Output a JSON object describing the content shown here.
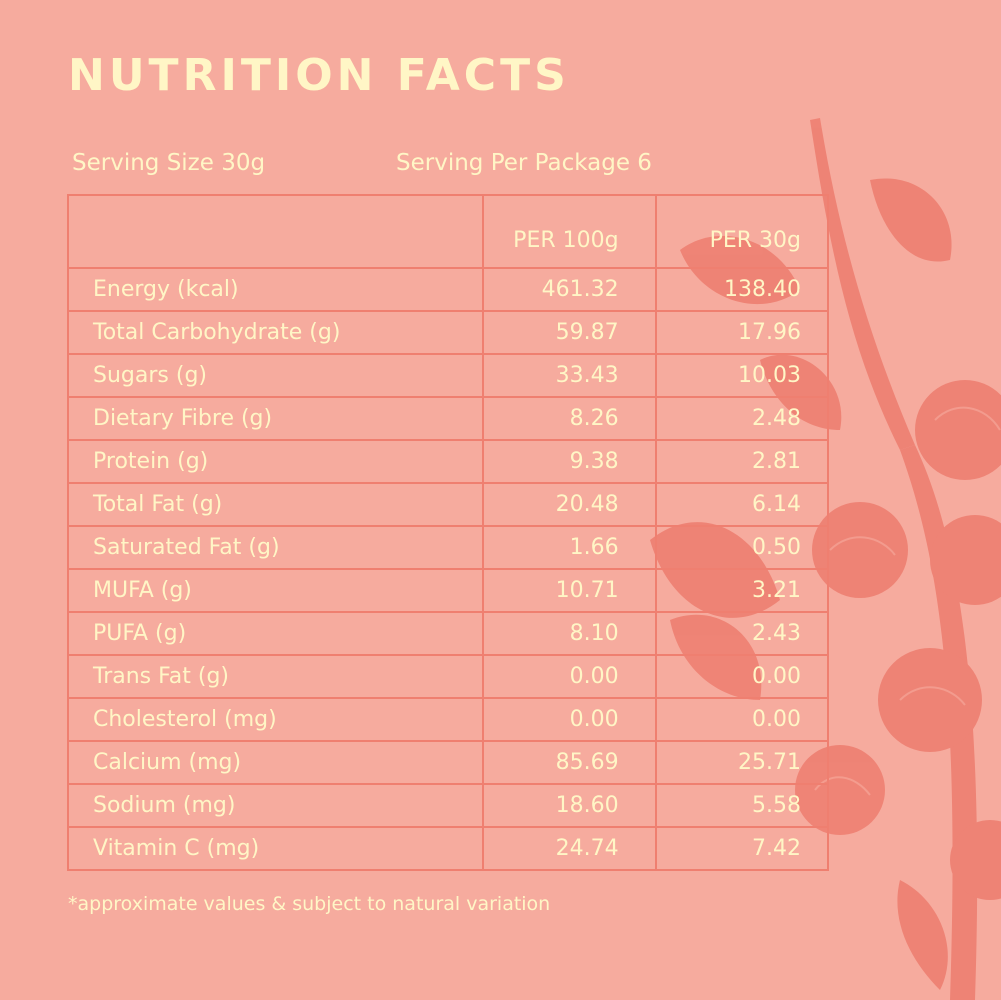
{
  "title": "NUTRITION FACTS",
  "serving_size": "Serving Size 30g",
  "serving_per_package": "Serving Per Package 6",
  "columns": [
    "",
    "PER 100g",
    "PER 30g"
  ],
  "rows": [
    {
      "name": "Energy (kcal)",
      "per100": "461.32",
      "per30": "138.40"
    },
    {
      "name": "Total Carbohydrate (g)",
      "per100": "59.87",
      "per30": "17.96"
    },
    {
      "name": "Sugars (g)",
      "per100": "33.43",
      "per30": "10.03"
    },
    {
      "name": "Dietary Fibre (g)",
      "per100": "8.26",
      "per30": "2.48"
    },
    {
      "name": "Protein (g)",
      "per100": "9.38",
      "per30": "2.81"
    },
    {
      "name": "Total Fat (g)",
      "per100": "20.48",
      "per30": "6.14"
    },
    {
      "name": "Saturated Fat (g)",
      "per100": "1.66",
      "per30": "0.50"
    },
    {
      "name": "MUFA (g)",
      "per100": "10.71",
      "per30": "3.21"
    },
    {
      "name": "PUFA (g)",
      "per100": "8.10",
      "per30": "2.43"
    },
    {
      "name": "Trans Fat (g)",
      "per100": "0.00",
      "per30": "0.00"
    },
    {
      "name": "Cholesterol (mg)",
      "per100": "0.00",
      "per30": "0.00"
    },
    {
      "name": "Calcium (mg)",
      "per100": "85.69",
      "per30": "25.71"
    },
    {
      "name": "Sodium (mg)",
      "per100": "18.60",
      "per30": "5.58"
    },
    {
      "name": "Vitamin C (mg)",
      "per100": "24.74",
      "per30": "7.42"
    }
  ],
  "footnote": "*approximate values & subject to natural variation",
  "colors": {
    "background": "#f6ab9e",
    "text": "#fff6c6",
    "lines": "#ef7f70",
    "illustration": "#ee7f71"
  }
}
